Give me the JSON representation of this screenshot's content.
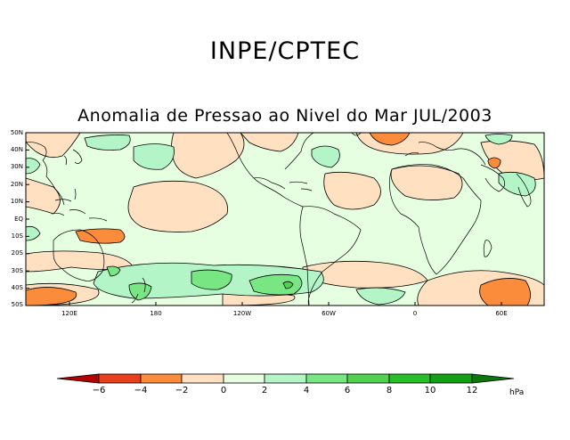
{
  "header": {
    "org_title": "INPE/CPTEC",
    "map_title": "Anomalia de Pressao ao Nivel do Mar JUL/2003"
  },
  "axes": {
    "lat_labels": [
      "50N",
      "40N",
      "30N",
      "20N",
      "10N",
      "EQ",
      "10S",
      "20S",
      "30S",
      "40S",
      "50S"
    ],
    "lon_labels": [
      "120E",
      "180",
      "120W",
      "60W",
      "0",
      "60E"
    ]
  },
  "colorbar": {
    "labels": [
      "−6",
      "−4",
      "−2",
      "0",
      "2",
      "4",
      "6",
      "8",
      "10",
      "12"
    ],
    "unit": "hPa",
    "colors": {
      "below_m6": "#b30000",
      "m6_m4": "#e8401a",
      "m4_m2": "#fa8c3c",
      "m2_0": "#ffe0c0",
      "0_2": "#e6ffe0",
      "2_4": "#b4f5c8",
      "4_6": "#78e682",
      "6_8": "#50d250",
      "8_10": "#28be28",
      "10_12": "#14a014",
      "above_12": "#0a780a"
    }
  }
}
